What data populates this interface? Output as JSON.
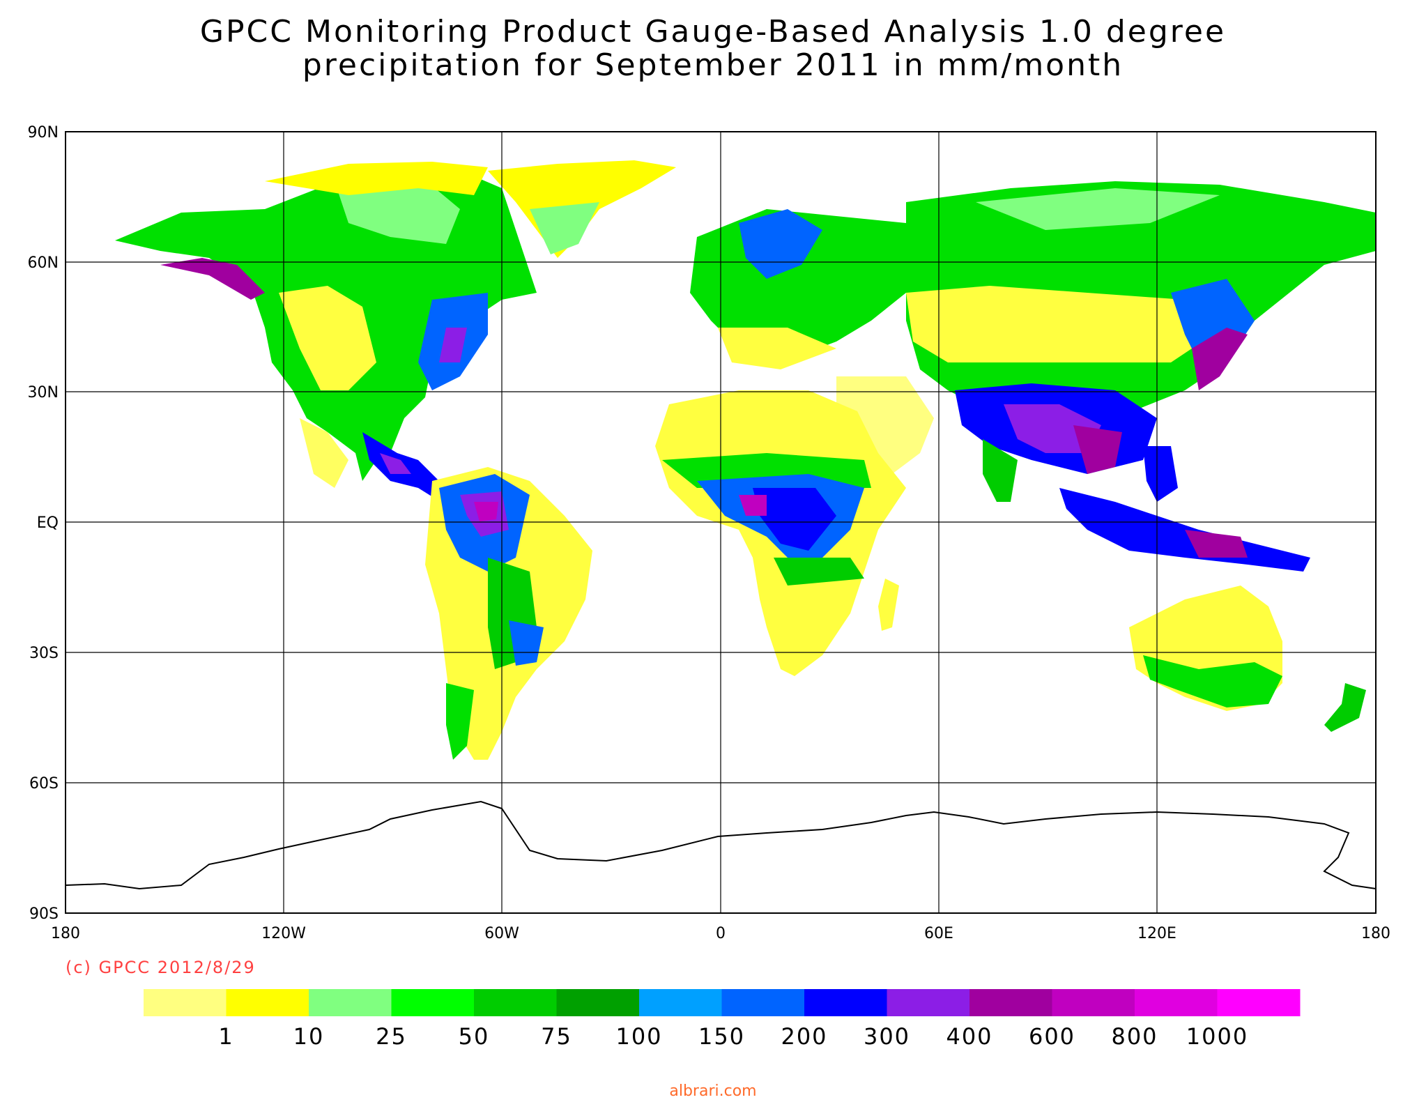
{
  "title_line1": "GPCC Monitoring Product Gauge-Based Analysis 1.0 degree",
  "title_line2": "precipitation for September  2011 in mm/month",
  "copyright": "(c) GPCC 2012/8/29",
  "watermark": "albrari.com",
  "lat_labels": [
    "90N",
    "60N",
    "30N",
    "EQ",
    "30S",
    "60S",
    "90S"
  ],
  "lon_labels": [
    "180",
    "120W",
    "60W",
    "0",
    "60E",
    "120E",
    "180"
  ],
  "legend": {
    "colors": [
      "#ffff80",
      "#ffff00",
      "#80ff80",
      "#00ff00",
      "#00cc00",
      "#00a000",
      "#00a0ff",
      "#0064ff",
      "#0000ff",
      "#8c1ee6",
      "#a0009f",
      "#c000c0",
      "#e000e0",
      "#ff00ff"
    ],
    "labels": [
      "1",
      "10",
      "25",
      "50",
      "75",
      "100",
      "150",
      "200",
      "300",
      "400",
      "600",
      "800",
      "1000"
    ]
  },
  "colors": {
    "copyright": "#ff4040",
    "watermark": "#ff6a2a",
    "land_outline": "#000000"
  }
}
